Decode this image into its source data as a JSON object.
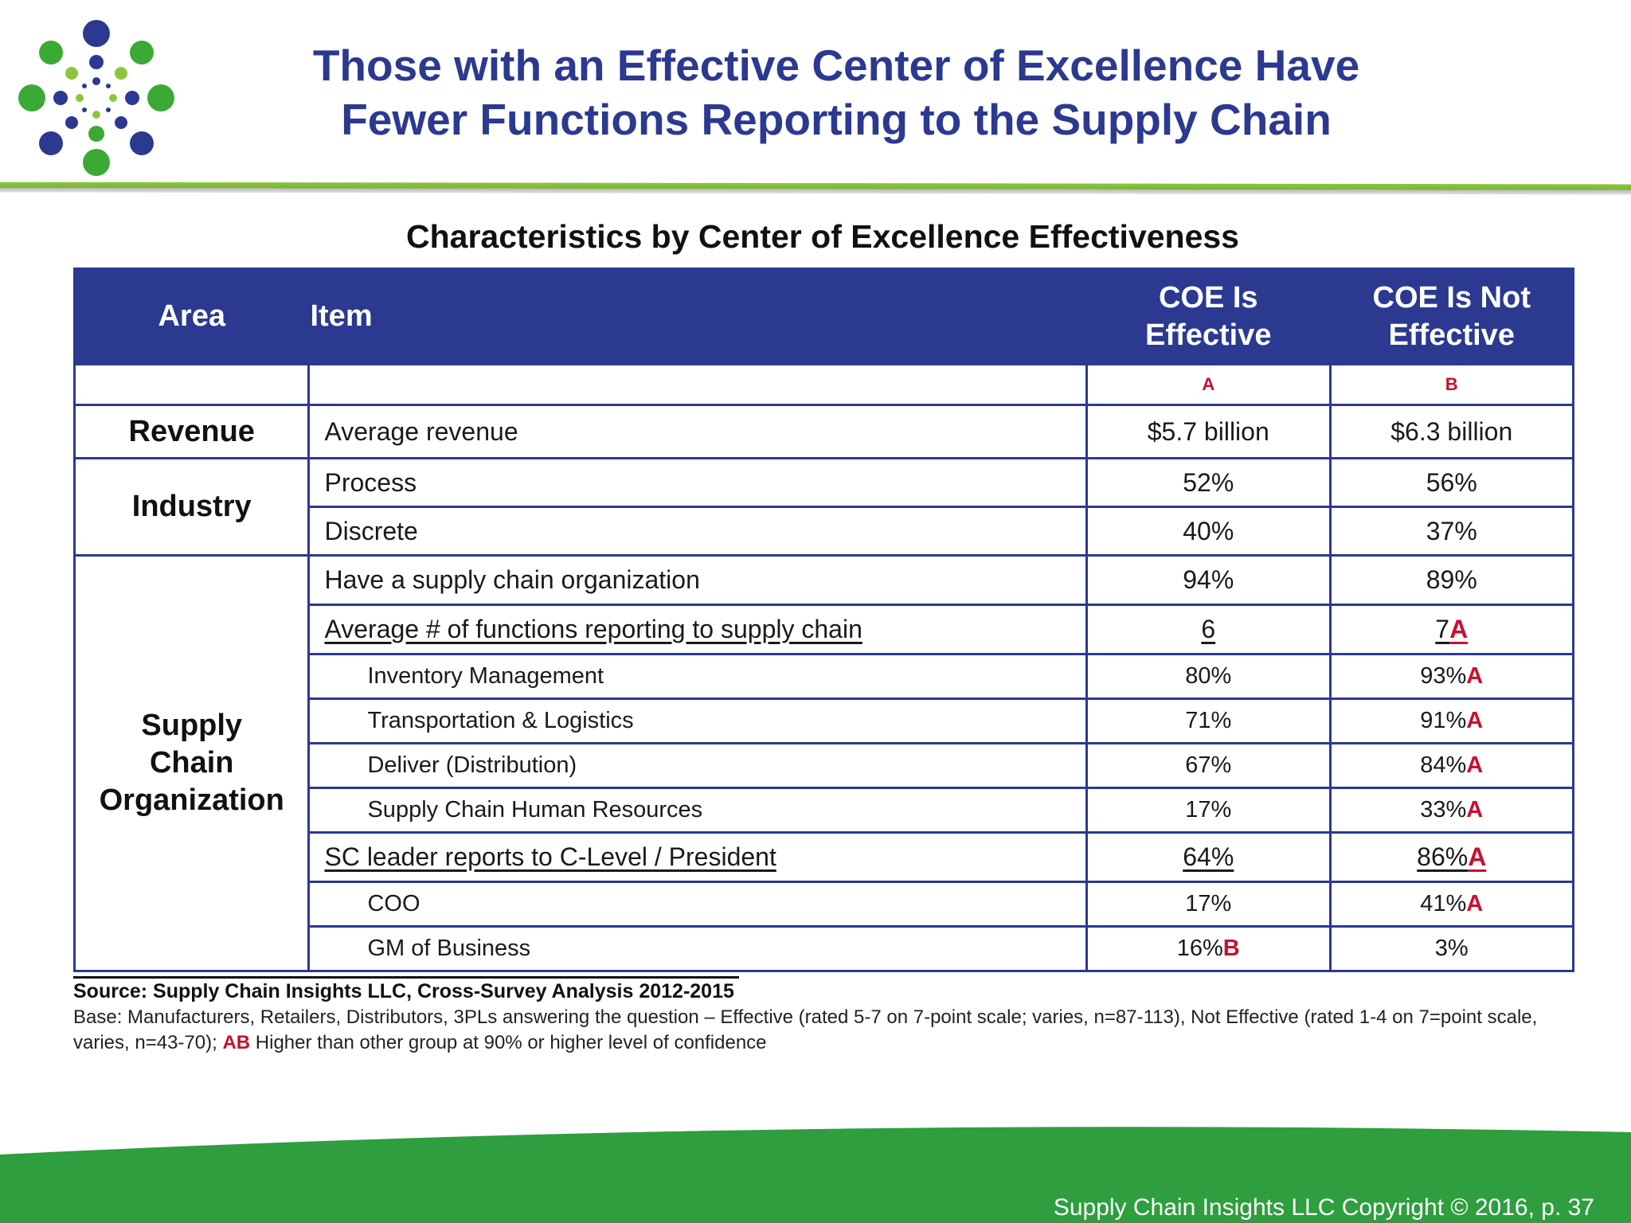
{
  "colors": {
    "navy": "#2b3990",
    "green": "#8cc63f",
    "footer_green": "#2e9e3e",
    "significance_red": "#c8102e"
  },
  "slide": {
    "title_line1": "Those with an Effective Center of Excellence Have",
    "title_line2": "Fewer Functions Reporting to the Supply Chain"
  },
  "logo": {
    "icon": "dots-burst-logo-icon"
  },
  "table": {
    "title": "Characteristics by Center of Excellence Effectiveness",
    "headers": {
      "area": "Area",
      "item": "Item",
      "coe_effective_line1": "COE Is",
      "coe_effective_line2": "Effective",
      "coe_not_effective_line1": "COE Is Not",
      "coe_not_effective_line2": "Effective"
    },
    "group_letters": {
      "a": "A",
      "b": "B"
    },
    "areas": {
      "revenue": "Revenue",
      "industry": "Industry",
      "sc_line1": "Supply",
      "sc_line2": "Chain",
      "sc_line3": "Organization"
    },
    "rows": [
      {
        "item": "Average revenue",
        "a": "$5.7 billion",
        "a_sig": "",
        "b": "$6.3 billion",
        "b_sig": ""
      },
      {
        "item": "Process",
        "a": "52%",
        "a_sig": "",
        "b": "56%",
        "b_sig": ""
      },
      {
        "item": "Discrete",
        "a": "40%",
        "a_sig": "",
        "b": "37%",
        "b_sig": ""
      },
      {
        "item": "Have a supply chain organization",
        "a": "94%",
        "a_sig": "",
        "b": "89%",
        "b_sig": ""
      },
      {
        "item": "Average # of functions reporting to supply chain",
        "a": "6",
        "a_sig": "",
        "b": "7",
        "b_sig": "A"
      },
      {
        "item": "Inventory Management",
        "a": "80%",
        "a_sig": "",
        "b": "93%",
        "b_sig": "A"
      },
      {
        "item": "Transportation & Logistics",
        "a": "71%",
        "a_sig": "",
        "b": "91%",
        "b_sig": "A"
      },
      {
        "item": "Deliver (Distribution)",
        "a": "67%",
        "a_sig": "",
        "b": "84%",
        "b_sig": "A"
      },
      {
        "item": "Supply Chain Human Resources",
        "a": "17%",
        "a_sig": "",
        "b": "33%",
        "b_sig": "A"
      },
      {
        "item": "SC leader reports to C-Level / President",
        "a": "64%",
        "a_sig": "",
        "b": "86%",
        "b_sig": "A"
      },
      {
        "item": "COO",
        "a": "17%",
        "a_sig": "",
        "b": "41%",
        "b_sig": "A"
      },
      {
        "item": "GM of Business",
        "a": "16%",
        "a_sig": "B",
        "b": "3%",
        "b_sig": ""
      }
    ]
  },
  "notes": {
    "source": "Source:  Supply Chain Insights LLC, Cross-Survey Analysis 2012-2015",
    "base_text": "Base:  Manufacturers,  Retailers, Distributors, 3PLs answering the question – Effective (rated 5-7 on 7-point scale; varies, n=87-113), Not Effective (rated 1-4 on 7=point scale, varies,  n=43-70);",
    "base_ab": "AB",
    "base_tail": "Higher than  other group at 90% or higher level of confidence"
  },
  "footer": {
    "copyright": "Supply Chain Insights LLC Copyright © 2016, p. 37"
  }
}
